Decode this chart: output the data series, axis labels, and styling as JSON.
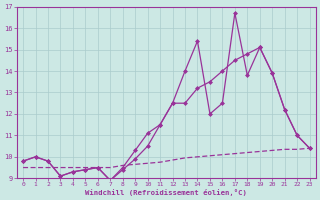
{
  "xlabel": "Windchill (Refroidissement éolien,°C)",
  "background_color": "#cce8e4",
  "grid_color": "#aacccc",
  "line_color": "#993399",
  "xlim": [
    -0.5,
    23.5
  ],
  "ylim": [
    9,
    17
  ],
  "xticks": [
    0,
    1,
    2,
    3,
    4,
    5,
    6,
    7,
    8,
    9,
    10,
    11,
    12,
    13,
    14,
    15,
    16,
    17,
    18,
    19,
    20,
    21,
    22,
    23
  ],
  "yticks": [
    9,
    10,
    11,
    12,
    13,
    14,
    15,
    16,
    17
  ],
  "line1_x": [
    0,
    1,
    2,
    3,
    4,
    5,
    6,
    7,
    8,
    9,
    10,
    11,
    12,
    13,
    14,
    15,
    16,
    17,
    18,
    19,
    20,
    21,
    22,
    23
  ],
  "line1_y": [
    9.8,
    10.0,
    9.8,
    9.1,
    9.3,
    9.4,
    9.5,
    8.9,
    9.4,
    9.9,
    10.5,
    11.5,
    12.5,
    14.0,
    15.4,
    12.0,
    12.5,
    16.7,
    13.8,
    15.1,
    13.9,
    12.2,
    11.0,
    10.4
  ],
  "line2_x": [
    0,
    1,
    2,
    3,
    4,
    5,
    6,
    7,
    8,
    9,
    10,
    11,
    12,
    13,
    14,
    15,
    16,
    17,
    18,
    19,
    20,
    21,
    22,
    23
  ],
  "line2_y": [
    9.8,
    10.0,
    9.8,
    9.1,
    9.3,
    9.4,
    9.5,
    8.9,
    9.5,
    10.3,
    11.1,
    11.5,
    12.5,
    12.5,
    13.2,
    13.5,
    14.0,
    14.5,
    14.8,
    15.1,
    13.9,
    12.2,
    11.0,
    10.4
  ],
  "line3_x": [
    0,
    1,
    2,
    3,
    4,
    5,
    6,
    7,
    8,
    9,
    10,
    11,
    12,
    13,
    14,
    15,
    16,
    17,
    18,
    19,
    20,
    21,
    22,
    23
  ],
  "line3_y": [
    9.5,
    9.5,
    9.5,
    9.5,
    9.5,
    9.5,
    9.5,
    9.5,
    9.6,
    9.65,
    9.7,
    9.75,
    9.85,
    9.95,
    10.0,
    10.05,
    10.1,
    10.15,
    10.2,
    10.25,
    10.3,
    10.35,
    10.35,
    10.4
  ]
}
